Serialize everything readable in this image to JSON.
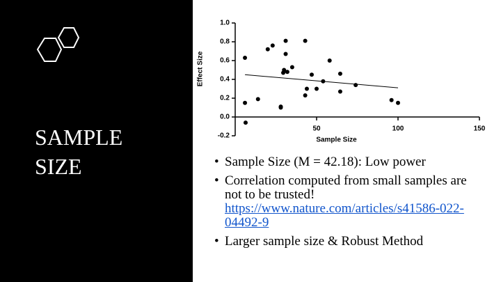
{
  "slide": {
    "title": "SAMPLE SIZE",
    "bullets": [
      {
        "text": "Sample Size (M = 42.18): Low power"
      },
      {
        "text": "Correlation computed from small samples are not to be trusted!",
        "link": "https://www.nature.com/articles/s41586-022-04492-9"
      },
      {
        "text": "Larger sample size & Robust Method"
      }
    ]
  },
  "chart_data": {
    "type": "scatter",
    "x_label": "Sample Size",
    "y_label": "Effect Size",
    "color": "#000000",
    "x": [
      6,
      6,
      6.4,
      14,
      20,
      23,
      28,
      28,
      29.5,
      30,
      31,
      31,
      32,
      35,
      43,
      44,
      43,
      47,
      50,
      54,
      58,
      64.5,
      64.5,
      74,
      96,
      100
    ],
    "values": [
      0.63,
      0.15,
      -0.06,
      0.19,
      0.72,
      0.76,
      0.11,
      0.1,
      0.47,
      0.5,
      0.81,
      0.67,
      0.48,
      0.53,
      0.23,
      0.3,
      0.81,
      0.45,
      0.3,
      0.38,
      0.6,
      0.46,
      0.27,
      0.34,
      0.18,
      0.15
    ],
    "trendline": {
      "x": [
        6,
        100
      ],
      "values": [
        0.45,
        0.31
      ]
    },
    "xlim": [
      0,
      150
    ],
    "xticks": [
      50,
      100,
      150
    ],
    "ylim": [
      -0.2,
      1.0
    ],
    "yticks": [
      {
        "value": 1.0,
        "label": "1.0"
      },
      0.8,
      0.6,
      0.4,
      0.2,
      {
        "value": 0,
        "label": "0.0"
      },
      -0.2
    ]
  }
}
